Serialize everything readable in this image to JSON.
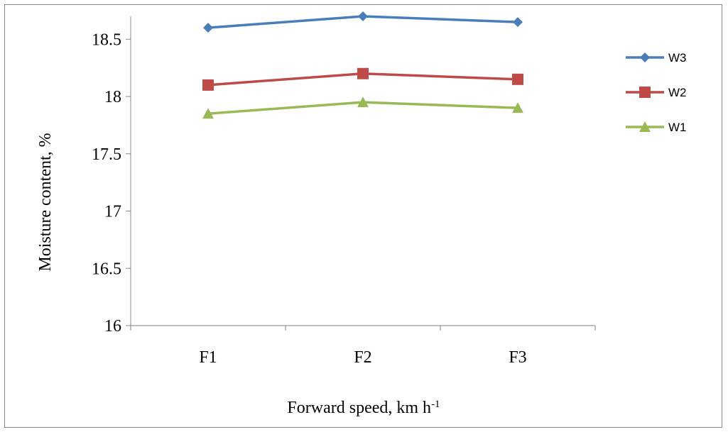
{
  "chart_data": {
    "type": "line",
    "categories": [
      "F1",
      "F2",
      "F3"
    ],
    "series": [
      {
        "name": "W3",
        "values": [
          18.6,
          18.7,
          18.65
        ],
        "color": "#4a7ebb",
        "marker": "diamond"
      },
      {
        "name": "W2",
        "values": [
          18.1,
          18.2,
          18.15
        ],
        "color": "#be4b48",
        "marker": "square"
      },
      {
        "name": "W1",
        "values": [
          17.85,
          17.95,
          17.9
        ],
        "color": "#98b954",
        "marker": "triangle"
      }
    ],
    "ylim": [
      16,
      18.7
    ],
    "yticks": [
      16,
      16.5,
      17,
      17.5,
      18,
      18.5
    ],
    "ytick_labels": [
      "16",
      "16.5",
      "17",
      "17.5",
      "18",
      "18.5"
    ],
    "xlabel": {
      "text": "Forward speed, km h",
      "superscript": "-1"
    },
    "ylabel": "Moisture content,  %",
    "legend_position": "right",
    "grid": false
  }
}
